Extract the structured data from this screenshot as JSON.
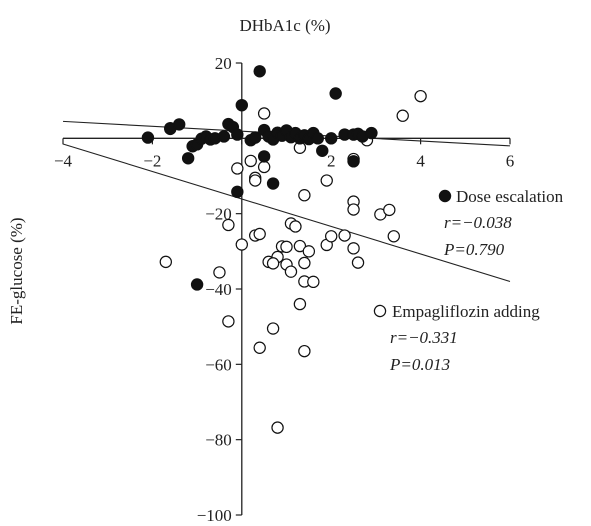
{
  "chart_data": {
    "type": "scatter",
    "xlabel": "DHbA1c (%)",
    "ylabel": "FE-glucose (%)",
    "xlim": [
      -4,
      6
    ],
    "ylim": [
      -100,
      20
    ],
    "x_ticks": [
      "−4",
      "−2",
      "0",
      "2",
      "4",
      "6"
    ],
    "x_tick_values": [
      -4,
      -2,
      0,
      2,
      4,
      6
    ],
    "y_ticks": [
      "20",
      "−20",
      "−40",
      "−60",
      "−80",
      "−100"
    ],
    "y_tick_values": [
      20,
      -20,
      -40,
      -60,
      -80,
      -100
    ],
    "grid": false,
    "legend_position": "right",
    "series": [
      {
        "name": "Dose escalation",
        "marker": "filled-circle",
        "color": "#111111",
        "r_label": "r=−0.038",
        "p_label": "P=0.790",
        "regression": {
          "x": [
            -4,
            6
          ],
          "y": [
            4.5,
            -2
          ]
        },
        "points": [
          [
            -2.1,
            0.2
          ],
          [
            -1.6,
            2.7
          ],
          [
            -1.4,
            3.7
          ],
          [
            -1.2,
            -5.3
          ],
          [
            -1.1,
            -2.1
          ],
          [
            -1.0,
            -1.6
          ],
          [
            -0.9,
            -0.1
          ],
          [
            -0.8,
            0.5
          ],
          [
            -0.7,
            -0.3
          ],
          [
            -0.6,
            0.0
          ],
          [
            -0.4,
            0.5
          ],
          [
            -0.3,
            3.8
          ],
          [
            -0.2,
            3.0
          ],
          [
            -0.1,
            1.0
          ],
          [
            0.0,
            8.8
          ],
          [
            0.2,
            -0.5
          ],
          [
            0.3,
            0.2
          ],
          [
            0.4,
            17.8
          ],
          [
            0.5,
            2.2
          ],
          [
            0.6,
            0.5
          ],
          [
            0.7,
            -0.3
          ],
          [
            0.8,
            1.5
          ],
          [
            0.9,
            0.7
          ],
          [
            1.0,
            2.1
          ],
          [
            1.1,
            0.3
          ],
          [
            1.2,
            1.4
          ],
          [
            1.3,
            0.0
          ],
          [
            1.4,
            0.8
          ],
          [
            1.5,
            -0.2
          ],
          [
            1.6,
            1.4
          ],
          [
            1.7,
            0.0
          ],
          [
            1.8,
            -3.3
          ],
          [
            2.0,
            0.0
          ],
          [
            2.1,
            11.9
          ],
          [
            2.3,
            1.0
          ],
          [
            2.5,
            1.0
          ],
          [
            2.6,
            1.2
          ],
          [
            2.7,
            0.5
          ],
          [
            2.9,
            1.4
          ],
          [
            0.5,
            -4.8
          ],
          [
            0.7,
            -12.0
          ],
          [
            -0.1,
            -14.2
          ],
          [
            2.5,
            -6.1
          ],
          [
            -1.0,
            -38.8
          ]
        ]
      },
      {
        "name": "Empagliflozin adding",
        "marker": "open-circle",
        "color": "#111111",
        "r_label": "r=−0.331",
        "p_label": "P=0.013",
        "regression": {
          "x": [
            -4,
            6
          ],
          "y": [
            -1.5,
            -38
          ]
        },
        "points": [
          [
            -1.6,
            2.5
          ],
          [
            0.5,
            6.6
          ],
          [
            -0.1,
            -8.0
          ],
          [
            0.2,
            -6.0
          ],
          [
            0.5,
            -7.6
          ],
          [
            0.3,
            -10.5
          ],
          [
            0.3,
            -11.2
          ],
          [
            1.3,
            -2.5
          ],
          [
            1.4,
            -15.1
          ],
          [
            1.9,
            -11.2
          ],
          [
            2.5,
            -5.5
          ],
          [
            2.5,
            -16.8
          ],
          [
            2.5,
            -18.9
          ],
          [
            2.8,
            -0.5
          ],
          [
            3.1,
            -20.2
          ],
          [
            3.3,
            -19.0
          ],
          [
            3.4,
            -26.0
          ],
          [
            3.6,
            6.0
          ],
          [
            4.0,
            11.2
          ],
          [
            -1.7,
            -32.8
          ],
          [
            -0.3,
            -23.0
          ],
          [
            0.0,
            -28.2
          ],
          [
            0.3,
            -25.8
          ],
          [
            0.4,
            -25.4
          ],
          [
            0.6,
            -32.8
          ],
          [
            0.8,
            -31.5
          ],
          [
            0.9,
            -28.7
          ],
          [
            1.0,
            -28.8
          ],
          [
            1.0,
            -33.5
          ],
          [
            1.1,
            -22.6
          ],
          [
            1.2,
            -23.4
          ],
          [
            1.3,
            -28.6
          ],
          [
            1.4,
            -38.0
          ],
          [
            1.4,
            -33.1
          ],
          [
            1.5,
            -30.0
          ],
          [
            1.6,
            -38.1
          ],
          [
            1.9,
            -28.3
          ],
          [
            2.0,
            -26.0
          ],
          [
            2.3,
            -25.8
          ],
          [
            2.5,
            -29.2
          ],
          [
            2.6,
            -33.0
          ],
          [
            -0.5,
            -35.6
          ],
          [
            -0.3,
            -48.6
          ],
          [
            0.7,
            -33.2
          ],
          [
            1.1,
            -35.4
          ],
          [
            1.3,
            -44.0
          ],
          [
            0.7,
            -50.5
          ],
          [
            0.4,
            -55.6
          ],
          [
            0.8,
            -76.8
          ],
          [
            1.4,
            -56.5
          ]
        ]
      }
    ]
  }
}
